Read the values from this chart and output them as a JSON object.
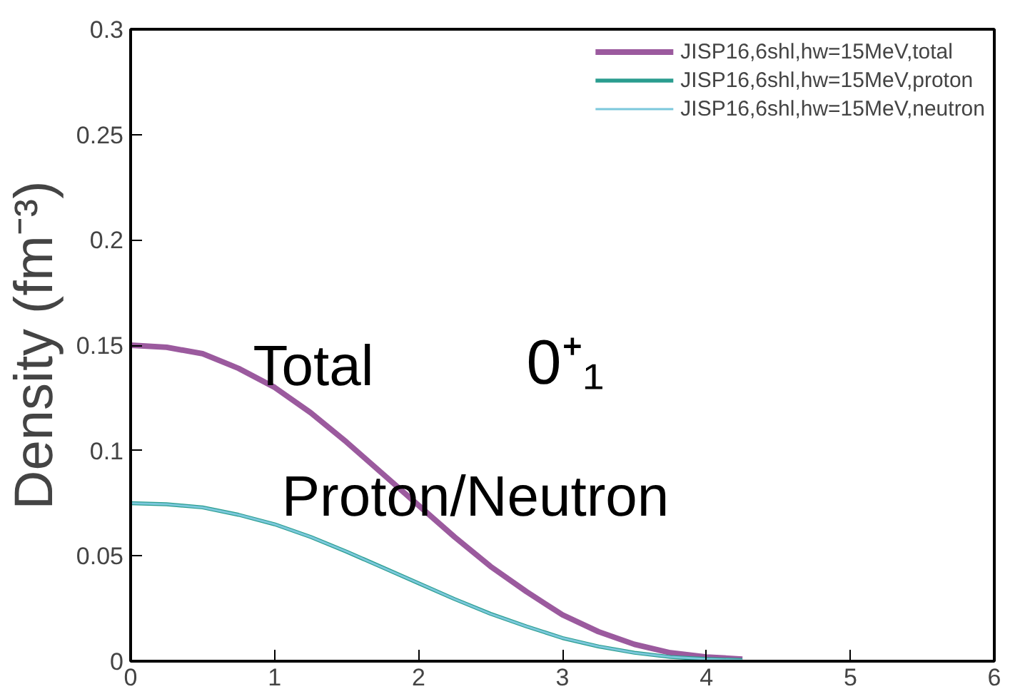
{
  "chart_data": {
    "type": "line",
    "ylabel": "Density (fm⁻³)",
    "x": [
      0,
      0.25,
      0.5,
      0.75,
      1,
      1.25,
      1.5,
      1.75,
      2,
      2.25,
      2.5,
      2.75,
      3,
      3.25,
      3.5,
      3.75,
      4,
      4.25
    ],
    "series": [
      {
        "name": "JISP16,6shl,hw=15MeV,total",
        "color": "#9b5a9e",
        "values": [
          0.15,
          0.149,
          0.146,
          0.139,
          0.13,
          0.118,
          0.104,
          0.089,
          0.074,
          0.059,
          0.045,
          0.033,
          0.022,
          0.014,
          0.008,
          0.004,
          0.002,
          0.001
        ]
      },
      {
        "name": "JISP16,6shl,hw=15MeV,proton",
        "color": "#2a9d8f",
        "values": [
          0.075,
          0.0745,
          0.073,
          0.0695,
          0.065,
          0.059,
          0.052,
          0.0445,
          0.037,
          0.0295,
          0.0225,
          0.0165,
          0.011,
          0.007,
          0.004,
          0.002,
          0.001,
          0.0005
        ]
      },
      {
        "name": "JISP16,6shl,hw=15MeV,neutron",
        "color": "#7cc8dc",
        "values": [
          0.075,
          0.0745,
          0.073,
          0.0695,
          0.065,
          0.059,
          0.052,
          0.0445,
          0.037,
          0.0295,
          0.0225,
          0.0165,
          0.011,
          0.007,
          0.004,
          0.002,
          0.001,
          0.0005
        ]
      }
    ],
    "xlim": [
      0,
      6
    ],
    "xticks": [
      0,
      1,
      2,
      3,
      4,
      5,
      6
    ],
    "ylim": [
      0,
      0.3
    ],
    "yticks": [
      0,
      0.05,
      0.1,
      0.15,
      0.2,
      0.25,
      0.3
    ],
    "annotations": [
      "Total",
      "0⁺₁",
      "Proton/Neutron"
    ],
    "legend": "top right",
    "grid": false,
    "line_style": "solid",
    "marker": "none"
  }
}
